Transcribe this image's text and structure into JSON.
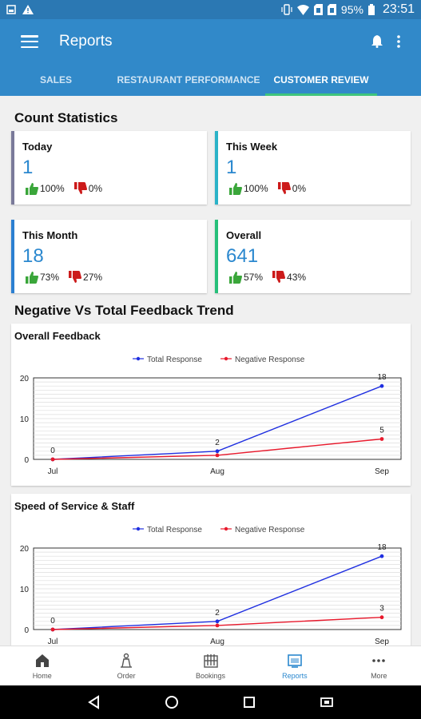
{
  "status_bar": {
    "battery": "95%",
    "time": "23:51"
  },
  "app_bar": {
    "title": "Reports"
  },
  "tabs": [
    {
      "label": "SALES",
      "active": false
    },
    {
      "label": "RESTAURANT PERFORMANCE",
      "active": false
    },
    {
      "label": "CUSTOMER REVIEW",
      "active": true
    }
  ],
  "count_statistics": {
    "title": "Count Statistics",
    "cards": [
      {
        "label": "Today",
        "value": "1",
        "positive": "100%",
        "negative": "0%",
        "accent": "#7a7a9a"
      },
      {
        "label": "This Week",
        "value": "1",
        "positive": "100%",
        "negative": "0%",
        "accent": "#2bb3c8"
      },
      {
        "label": "This Month",
        "value": "18",
        "positive": "73%",
        "negative": "27%",
        "accent": "#2b7fd1"
      },
      {
        "label": "Overall",
        "value": "641",
        "positive": "57%",
        "negative": "43%",
        "accent": "#27c07a"
      }
    ]
  },
  "trend_section": {
    "title": "Negative Vs Total Feedback Trend"
  },
  "chart_data": [
    {
      "type": "line",
      "title": "Overall Feedback",
      "categories": [
        "Jul",
        "Aug",
        "Sep"
      ],
      "series": [
        {
          "name": "Total Response",
          "values": [
            0,
            2,
            18
          ],
          "color": "#1f2fe0"
        },
        {
          "name": "Negative Response",
          "values": [
            0,
            1,
            5
          ],
          "color": "#e8192c"
        }
      ],
      "data_labels": [
        "0",
        "2",
        "18",
        "5"
      ],
      "ylim": [
        0,
        20
      ],
      "yticks": [
        "0",
        "10",
        "20"
      ],
      "grid": true,
      "legend": "top-center"
    },
    {
      "type": "line",
      "title": "Speed of Service & Staff",
      "categories": [
        "Jul",
        "Aug",
        "Sep"
      ],
      "series": [
        {
          "name": "Total Response",
          "values": [
            0,
            2,
            18
          ],
          "color": "#1f2fe0"
        },
        {
          "name": "Negative Response",
          "values": [
            0,
            1,
            3
          ],
          "color": "#e8192c"
        }
      ],
      "data_labels": [
        "0",
        "2",
        "18",
        "3"
      ],
      "ylim": [
        0,
        20
      ],
      "yticks": [
        "0",
        "10",
        "20"
      ],
      "grid": true,
      "legend": "top-center"
    }
  ],
  "bottom_nav": [
    {
      "label": "Home",
      "icon": "home-icon",
      "active": false
    },
    {
      "label": "Order",
      "icon": "order-icon",
      "active": false
    },
    {
      "label": "Bookings",
      "icon": "bookings-icon",
      "active": false
    },
    {
      "label": "Reports",
      "icon": "reports-icon",
      "active": true
    },
    {
      "label": "More",
      "icon": "more-icon",
      "active": false
    }
  ],
  "colors": {
    "primary": "#3189c9",
    "accent_green": "#3fc47c",
    "value_blue": "#2b88cf"
  }
}
